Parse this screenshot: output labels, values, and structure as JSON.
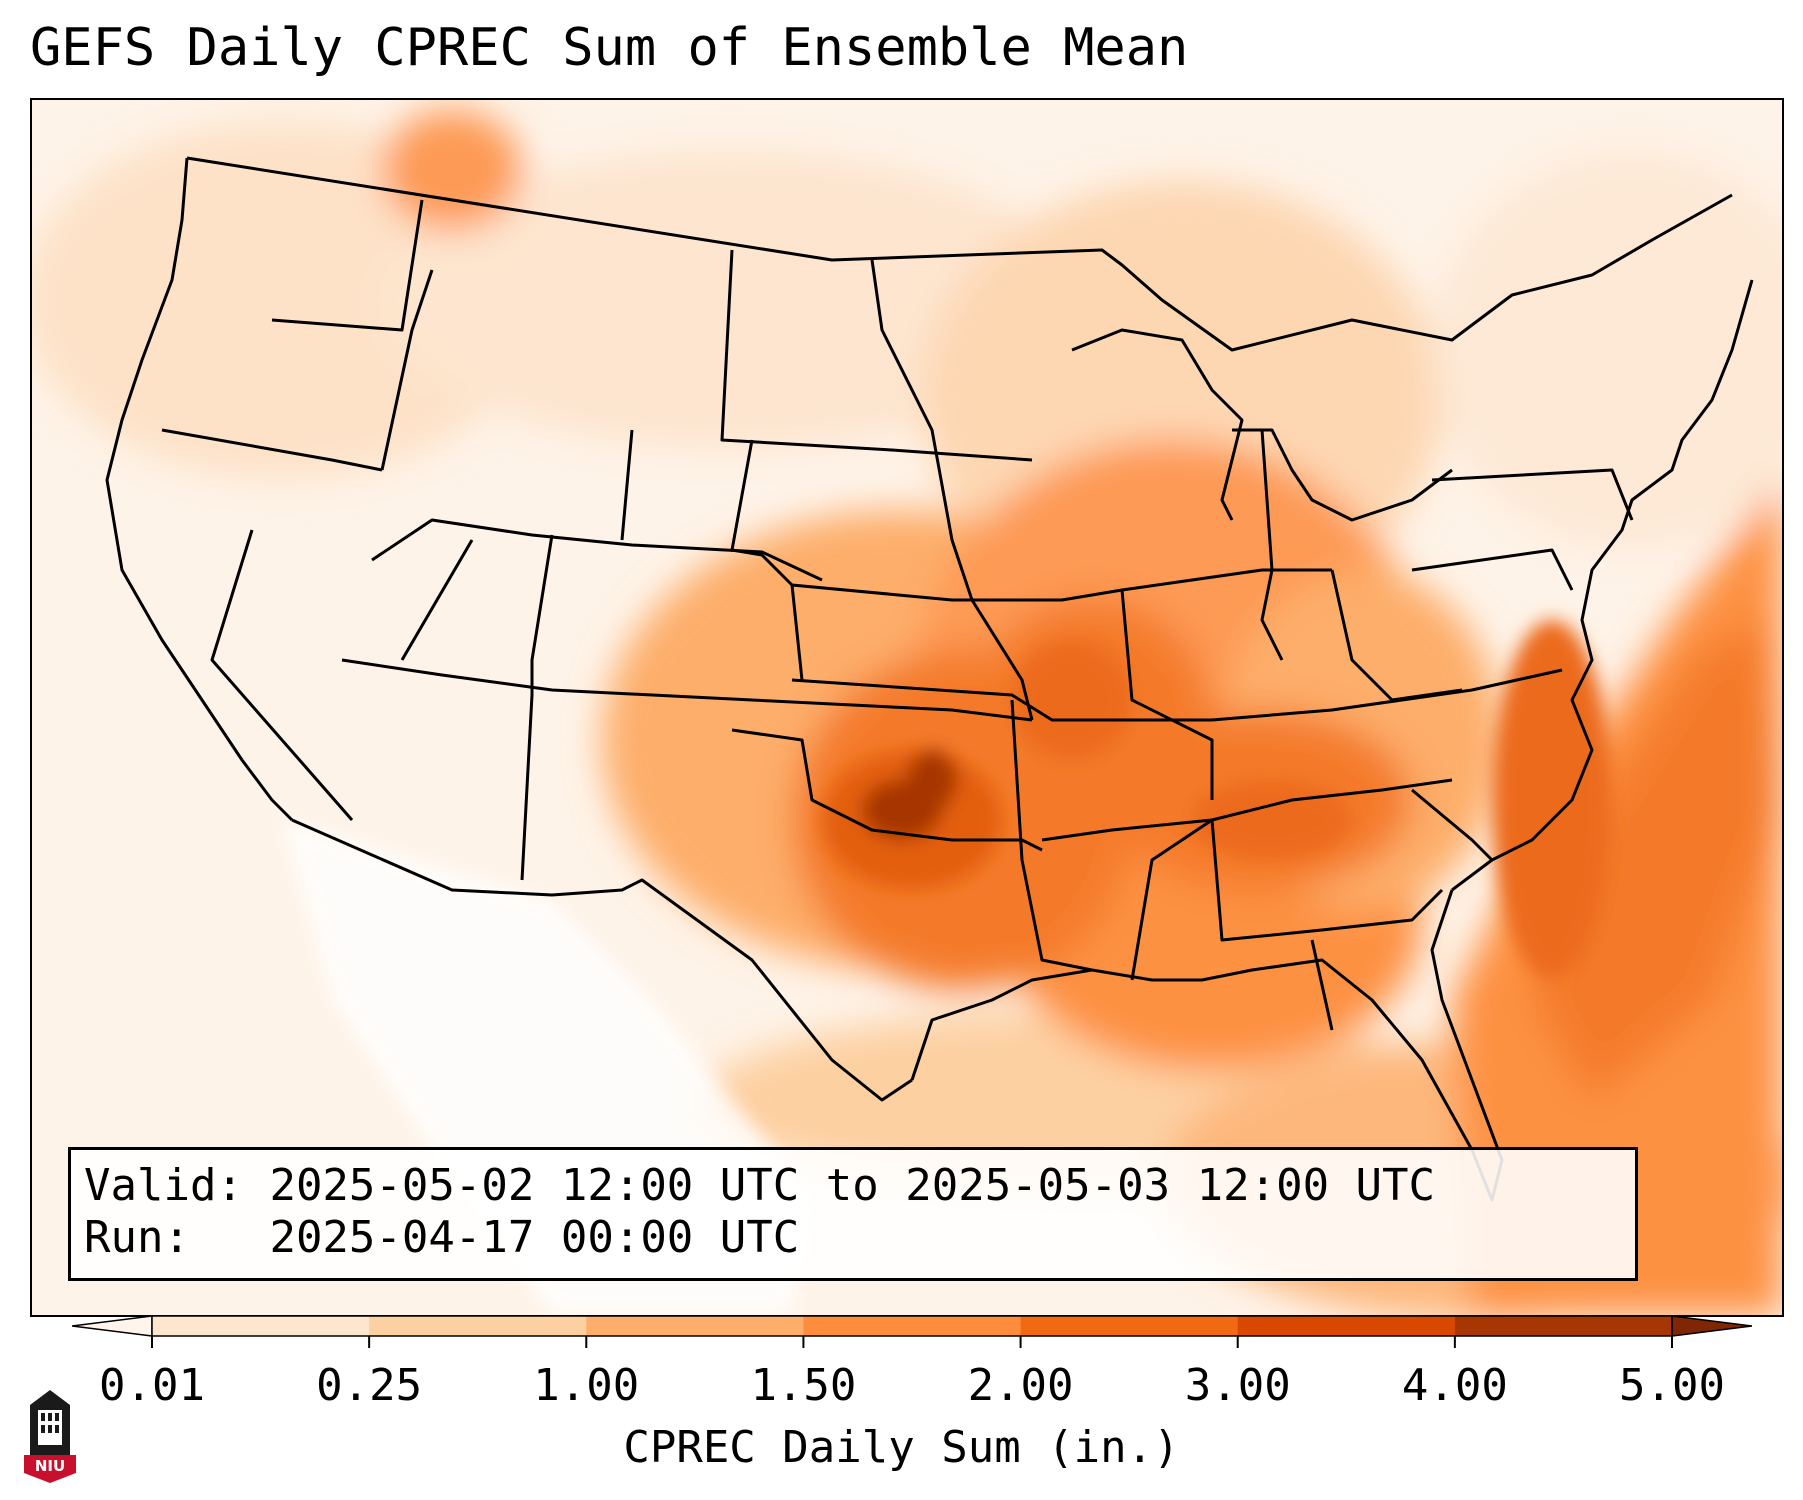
{
  "title": "GEFS Daily CPREC Sum of Ensemble Mean",
  "info": {
    "valid_label": "Valid:",
    "valid_text": "2025-05-02 12:00 UTC to 2025-05-03 12:00 UTC",
    "run_label": "Run:",
    "run_text": "2025-04-17 00:00 UTC"
  },
  "colorbar": {
    "label": "CPREC Daily Sum (in.)",
    "ticks": [
      "0.01",
      "0.25",
      "1.00",
      "1.50",
      "2.00",
      "3.00",
      "4.00",
      "5.00"
    ],
    "colors": [
      "#fee6ce",
      "#fdd0a2",
      "#fdae6b",
      "#fd8d3c",
      "#f16913",
      "#d94801",
      "#a63603"
    ],
    "under_color": "#fff5eb",
    "over_color": "#7f2704"
  },
  "map": {
    "region": "Contiguous United States",
    "max_area": "Central Oklahoma"
  },
  "logo": {
    "text": "NIU",
    "icon": "university-tower-icon"
  }
}
